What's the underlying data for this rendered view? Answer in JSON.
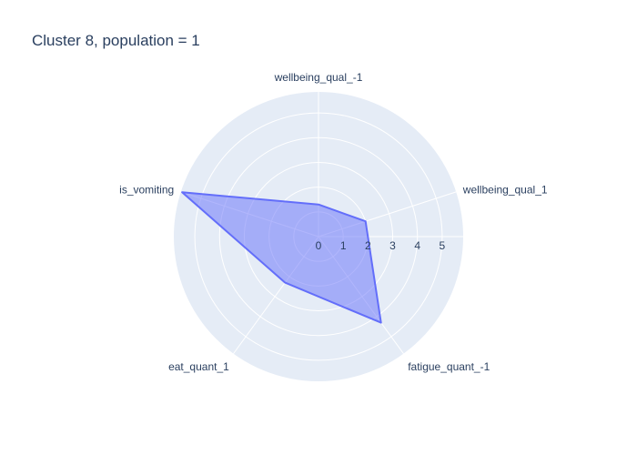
{
  "chart_data": {
    "type": "radar",
    "title": "Cluster 8, population = 1",
    "axes": [
      "wellbeing_qual_1",
      "wellbeing_qual_-1",
      "is_vomiting",
      "eat_quant_1",
      "fatigue_quant_-1"
    ],
    "series": [
      {
        "values": [
          2,
          1.3,
          5.8,
          2.3,
          4.3
        ]
      }
    ],
    "radial_range": [
      0,
      5.85
    ],
    "radial_ticks": [
      0,
      1,
      2,
      3,
      4,
      5
    ],
    "angular_direction": "counterclockwise",
    "first_axis_angle_deg": 18,
    "grid": true,
    "colors": {
      "polar_background": "#e5ecf6",
      "grid_line": "#ffffff",
      "series_line": "#636efa",
      "series_fill": "rgba(99,110,250,0.5)",
      "text": "#2a3f5f"
    }
  }
}
